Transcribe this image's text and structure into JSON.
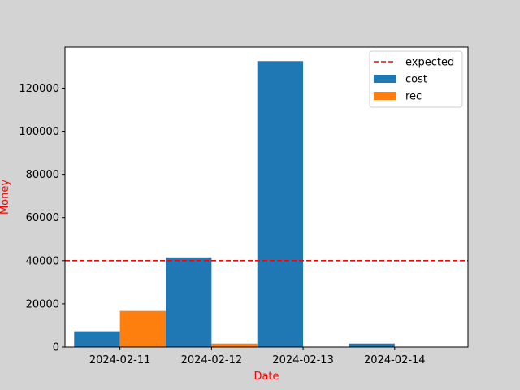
{
  "chart_data": {
    "type": "bar",
    "title": "",
    "xlabel": "Date",
    "ylabel": "Money",
    "label_color": "#ff0000",
    "categories": [
      "2024-02-11",
      "2024-02-12",
      "2024-02-13",
      "2024-02-14"
    ],
    "series": [
      {
        "name": "cost",
        "color": "#1f77b4",
        "values": [
          7300,
          41500,
          132500,
          1600
        ]
      },
      {
        "name": "rec",
        "color": "#ff7f0e",
        "values": [
          16700,
          1600,
          0,
          0
        ]
      }
    ],
    "reference_line": {
      "name": "expected",
      "value": 40000,
      "color": "#ff0000",
      "style": "dashed"
    },
    "ylim": [
      0,
      139000
    ],
    "yticks": [
      0,
      20000,
      40000,
      60000,
      80000,
      100000,
      120000
    ],
    "legend_position": "top-right",
    "grid": false
  }
}
